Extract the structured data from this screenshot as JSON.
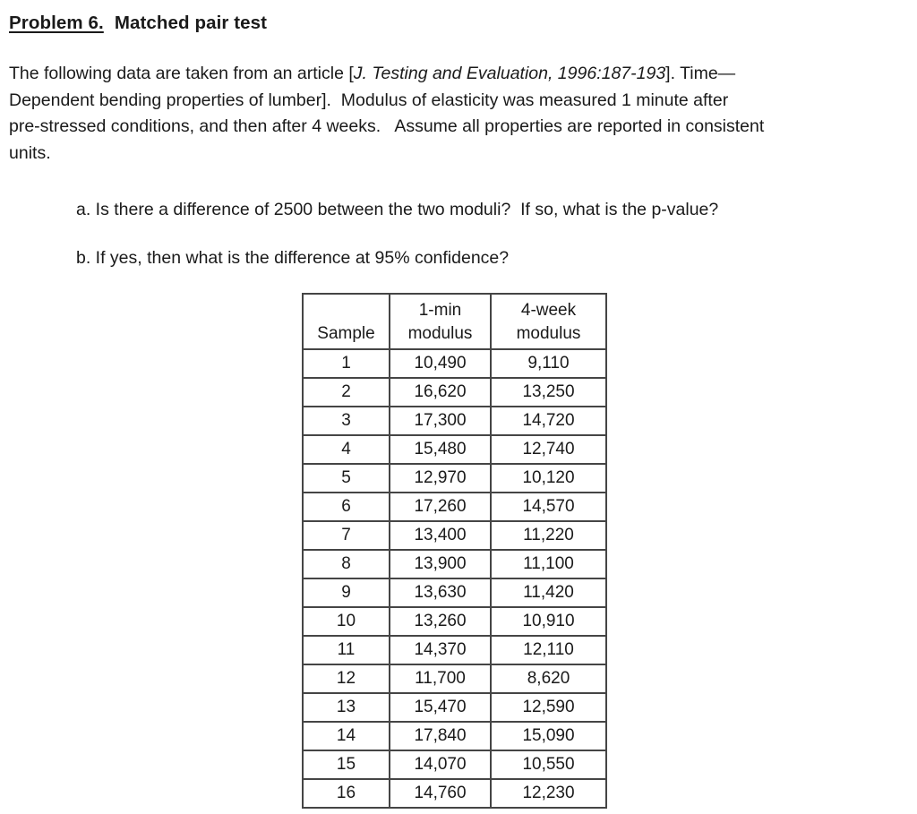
{
  "title": {
    "number": "Problem 6.",
    "name": "Matched pair test"
  },
  "intro": {
    "line1_pre": "The following data are taken from an article [",
    "line1_citation": "J. Testing and Evaluation, 1996:187-193",
    "line1_post": "]. Time—",
    "line2": "Dependent bending properties of lumber].  Modulus of elasticity was measured 1 minute after",
    "line3": "pre-stressed conditions, and then after 4 weeks.   Assume all properties are reported in consistent",
    "line4": "units."
  },
  "questions": {
    "a": "a. Is there a difference of 2500 between the two moduli?  If so, what is the p-value?",
    "b": "b. If yes, then what is the difference at 95% confidence?"
  },
  "table": {
    "columns": [
      {
        "name": "sample",
        "lines": [
          "Sample"
        ]
      },
      {
        "name": "one-min-modulus",
        "lines": [
          "1-min",
          "modulus"
        ]
      },
      {
        "name": "four-week-modulus",
        "lines": [
          "4-week",
          "modulus"
        ]
      }
    ],
    "rows": [
      [
        "1",
        "10,490",
        "9,110"
      ],
      [
        "2",
        "16,620",
        "13,250"
      ],
      [
        "3",
        "17,300",
        "14,720"
      ],
      [
        "4",
        "15,480",
        "12,740"
      ],
      [
        "5",
        "12,970",
        "10,120"
      ],
      [
        "6",
        "17,260",
        "14,570"
      ],
      [
        "7",
        "13,400",
        "11,220"
      ],
      [
        "8",
        "13,900",
        "11,100"
      ],
      [
        "9",
        "13,630",
        "11,420"
      ],
      [
        "10",
        "13,260",
        "10,910"
      ],
      [
        "11",
        "14,370",
        "12,110"
      ],
      [
        "12",
        "11,700",
        "8,620"
      ],
      [
        "13",
        "15,470",
        "12,590"
      ],
      [
        "14",
        "17,840",
        "15,090"
      ],
      [
        "15",
        "14,070",
        "10,550"
      ],
      [
        "16",
        "14,760",
        "12,230"
      ]
    ]
  },
  "colors": {
    "text": "#1a1a1a",
    "table_border": "#454545",
    "background": "#ffffff"
  }
}
